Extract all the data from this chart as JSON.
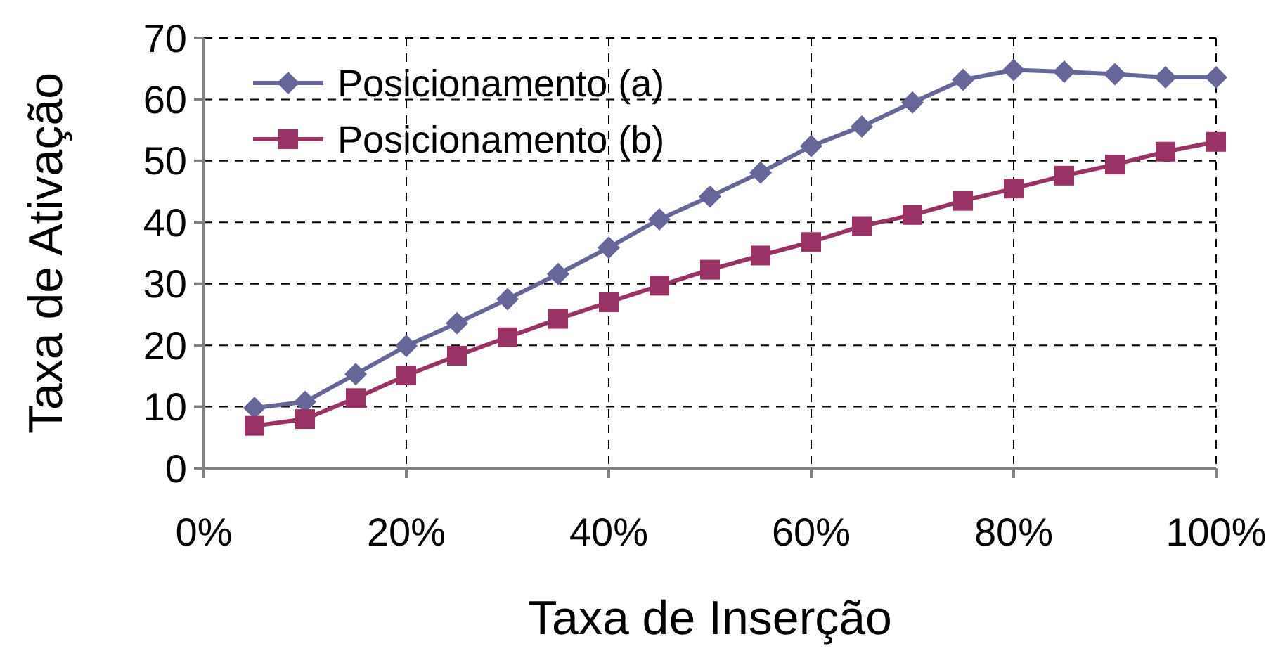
{
  "chart_data": {
    "type": "line",
    "xlabel": "Taxa de Inserção",
    "ylabel": "Taxa de Ativação",
    "x": [
      5,
      10,
      15,
      20,
      25,
      30,
      35,
      40,
      45,
      50,
      55,
      60,
      65,
      70,
      75,
      80,
      85,
      90,
      95,
      100
    ],
    "series": [
      {
        "name": "Posicionamento (a)",
        "color": "#666699",
        "marker": "diamond",
        "values": [
          9.8,
          10.8,
          15.3,
          19.9,
          23.6,
          27.5,
          31.6,
          35.9,
          40.5,
          44.2,
          48.1,
          52.4,
          55.6,
          59.5,
          63.2,
          64.8,
          64.5,
          64.1,
          63.6,
          63.6
        ]
      },
      {
        "name": "Posicionamento (b)",
        "color": "#993366",
        "marker": "square",
        "values": [
          6.9,
          8.0,
          11.4,
          15.1,
          18.3,
          21.3,
          24.3,
          27.0,
          29.7,
          32.3,
          34.6,
          36.8,
          39.4,
          41.2,
          43.5,
          45.5,
          47.6,
          49.4,
          51.5,
          53.1
        ]
      }
    ],
    "xlim": [
      0,
      100
    ],
    "xticks": [
      {
        "value": 0,
        "label": "0%"
      },
      {
        "value": 20,
        "label": "20%"
      },
      {
        "value": 40,
        "label": "40%"
      },
      {
        "value": 60,
        "label": "60%"
      },
      {
        "value": 80,
        "label": "80%"
      },
      {
        "value": 100,
        "label": "100%"
      }
    ],
    "ylim": [
      0,
      70
    ],
    "yticks": [
      0,
      10,
      20,
      30,
      40,
      50,
      60,
      70
    ],
    "grid": true,
    "legend": "top left",
    "line_style": "solid"
  }
}
